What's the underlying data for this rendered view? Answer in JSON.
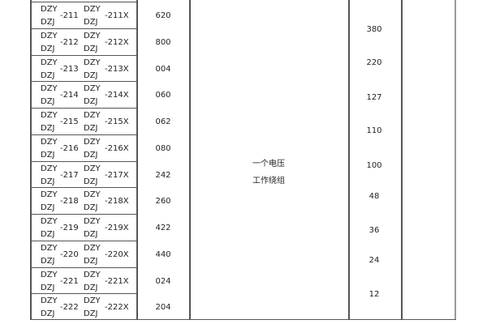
{
  "rows": [
    {
      "a": "DZY",
      "b": "DZJ",
      "n": "-211",
      "c": "DZY",
      "d": "DZJ",
      "x": "-211X",
      "code": "620"
    },
    {
      "a": "DZY",
      "b": "DZJ",
      "n": "-212",
      "c": "DZY",
      "d": "DZJ",
      "x": "-212X",
      "code": "800"
    },
    {
      "a": "DZY",
      "b": "DZJ",
      "n": "-213",
      "c": "DZY",
      "d": "DZJ",
      "x": "-213X",
      "code": "004"
    },
    {
      "a": "DZY",
      "b": "DZJ",
      "n": "-214",
      "c": "DZY",
      "d": "DZJ",
      "x": "-214X",
      "code": "060"
    },
    {
      "a": "DZY",
      "b": "DZJ",
      "n": "-215",
      "c": "DZY",
      "d": "DZJ",
      "x": "-215X",
      "code": "062"
    },
    {
      "a": "DZY",
      "b": "DZJ",
      "n": "-216",
      "c": "DZY",
      "d": "DZJ",
      "x": "-216X",
      "code": "080"
    },
    {
      "a": "DZY",
      "b": "DZJ",
      "n": "-217",
      "c": "DZY",
      "d": "DZJ",
      "x": "-217X",
      "code": "242"
    },
    {
      "a": "DZY",
      "b": "DZJ",
      "n": "-218",
      "c": "DZY",
      "d": "DZJ",
      "x": "-218X",
      "code": "260"
    },
    {
      "a": "DZY",
      "b": "DZJ",
      "n": "-219",
      "c": "DZY",
      "d": "DZJ",
      "x": "-219X",
      "code": "422"
    },
    {
      "a": "DZY",
      "b": "DZJ",
      "n": "-220",
      "c": "DZY",
      "d": "DZJ",
      "x": "-220X",
      "code": "440"
    },
    {
      "a": "DZY",
      "b": "DZJ",
      "n": "-221",
      "c": "DZY",
      "d": "DZJ",
      "x": "-221X",
      "code": "024"
    },
    {
      "a": "DZY",
      "b": "DZJ",
      "n": "-222",
      "c": "DZY",
      "d": "DZJ",
      "x": "-222X",
      "code": "204"
    }
  ],
  "winding": {
    "line1": "一个电压",
    "line2": "工作绕组"
  },
  "voltages": [
    "380",
    "220",
    "127",
    "110",
    "100",
    "48",
    "36",
    "24",
    "12"
  ]
}
